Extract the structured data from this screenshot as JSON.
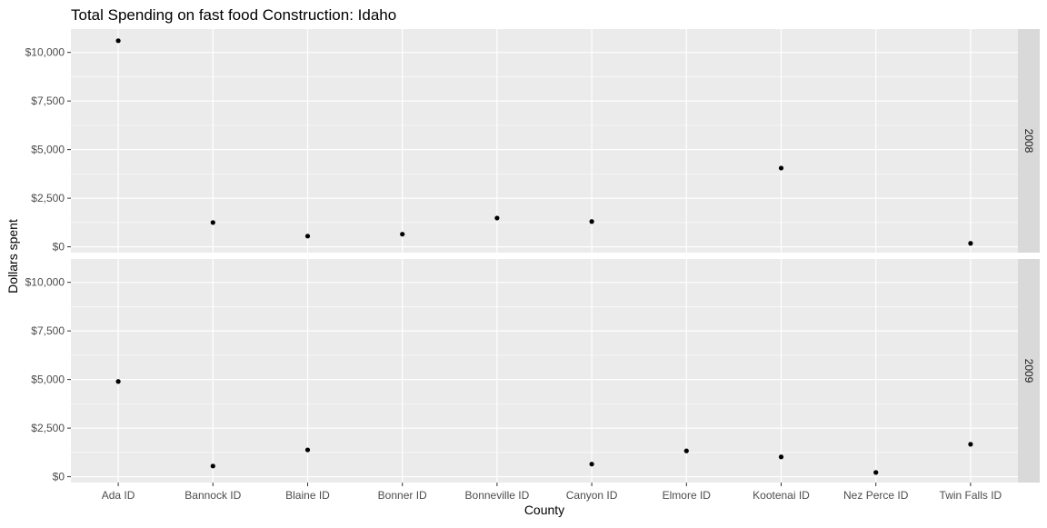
{
  "chart_data": {
    "type": "scatter",
    "title": "Total Spending on fast food Construction: Idaho",
    "xlabel": "County",
    "ylabel": "Dollars spent",
    "categories": [
      "Ada ID",
      "Bannock ID",
      "Blaine ID",
      "Bonner ID",
      "Bonneville ID",
      "Canyon ID",
      "Elmore ID",
      "Kootenai ID",
      "Nez Perce ID",
      "Twin Falls ID"
    ],
    "ylim": [
      -300,
      11200
    ],
    "yticks": [
      0,
      2500,
      5000,
      7500,
      10000
    ],
    "ytick_labels": [
      "$0",
      "$2,500",
      "$5,000",
      "$7,500",
      "$10,000"
    ],
    "grid": true,
    "point_color": "#000000",
    "panel_background": "#ebebeb",
    "strip_background": "#d9d9d9",
    "facets": [
      {
        "label": "2008",
        "points": [
          {
            "x": "Ada ID",
            "y": 10600
          },
          {
            "x": "Bannock ID",
            "y": 1250
          },
          {
            "x": "Blaine ID",
            "y": 550
          },
          {
            "x": "Bonner ID",
            "y": 650
          },
          {
            "x": "Bonneville ID",
            "y": 1480
          },
          {
            "x": "Canyon ID",
            "y": 1300
          },
          {
            "x": "Kootenai ID",
            "y": 4050
          },
          {
            "x": "Twin Falls ID",
            "y": 180
          }
        ]
      },
      {
        "label": "2009",
        "points": [
          {
            "x": "Ada ID",
            "y": 4900
          },
          {
            "x": "Bannock ID",
            "y": 550
          },
          {
            "x": "Blaine ID",
            "y": 1380
          },
          {
            "x": "Canyon ID",
            "y": 650
          },
          {
            "x": "Elmore ID",
            "y": 1330
          },
          {
            "x": "Kootenai ID",
            "y": 1020
          },
          {
            "x": "Nez Perce ID",
            "y": 220
          },
          {
            "x": "Twin Falls ID",
            "y": 1670
          }
        ]
      }
    ]
  }
}
